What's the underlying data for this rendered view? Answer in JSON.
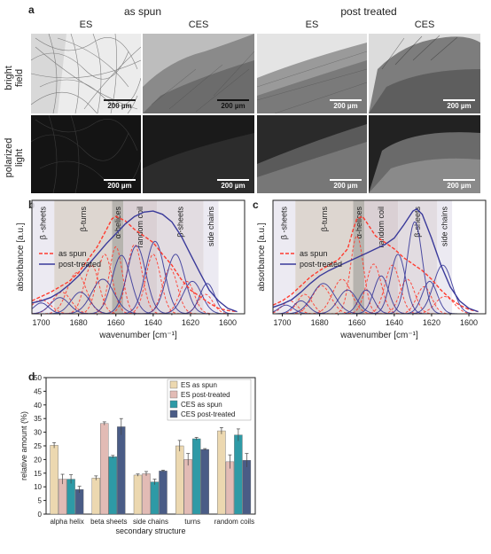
{
  "figure": {
    "panel_a": {
      "label": "a",
      "group_headers": [
        "as spun",
        "post treated"
      ],
      "column_headers": [
        "ES",
        "CES",
        "ES",
        "CES"
      ],
      "row_labels": [
        "bright field",
        "polarized light"
      ],
      "row_label_lines": [
        [
          "bright",
          "field"
        ],
        [
          "polarized",
          "light"
        ]
      ],
      "scale_bar": "200 µm"
    },
    "panel_b": {
      "label": "b",
      "ylabel": "absorbance [a.u.]",
      "xlabel": "wavenumber [cm⁻¹]",
      "xticks": [
        "1700",
        "1680",
        "1660",
        "1640",
        "1620",
        "1600"
      ],
      "regions": [
        "β -sheets",
        "β-turns",
        "α-helices",
        "random coil",
        "β-sheets",
        "side chains"
      ],
      "legend": [
        "as spun",
        "post-treated"
      ]
    },
    "panel_c": {
      "label": "c",
      "ylabel": "absorbance [a.u.]",
      "xlabel": "wavenumber [cm⁻¹]",
      "xticks": [
        "1700",
        "1680",
        "1660",
        "1640",
        "1620",
        "1600"
      ],
      "regions": [
        "β -sheets",
        "β-turns",
        "α-helices",
        "random coil",
        "β-sheets",
        "side chains"
      ],
      "legend": [
        "as spun",
        "post-treated"
      ]
    },
    "panel_d": {
      "label": "d"
    }
  },
  "colors": {
    "as_spun": "#ff3b2f",
    "post_treated": "#3a3a9a",
    "es_as_spun": "#ecd8b0",
    "es_post": "#e2bbb5",
    "ces_as_spun": "#2e9aa6",
    "ces_post": "#4a5c86"
  },
  "chart_data": [
    {
      "type": "line",
      "xlabel": "wavenumber [cm⁻¹]",
      "ylabel": "absorbance [a.u.]",
      "xlim": [
        1705,
        1591
      ],
      "reversed_x": true,
      "regions": [
        {
          "name": "β -sheets",
          "from": 1705,
          "to": 1693
        },
        {
          "name": "β-turns",
          "from": 1693,
          "to": 1662
        },
        {
          "name": "α-helices",
          "from": 1662,
          "to": 1656
        },
        {
          "name": "random coil",
          "from": 1656,
          "to": 1638
        },
        {
          "name": "β-sheets",
          "from": 1638,
          "to": 1613
        },
        {
          "name": "side chains",
          "from": 1613,
          "to": 1605
        }
      ],
      "series": [
        {
          "name": "as spun",
          "style": "dashed",
          "sum": {
            "x": [
              1705,
              1700,
              1695,
              1690,
              1685,
              1680,
              1675,
              1670,
              1665,
              1662,
              1660,
              1655,
              1650,
              1645,
              1640,
              1635,
              1630,
              1625,
              1620,
              1615,
              1610,
              1605,
              1600,
              1595
            ],
            "y": [
              0.12,
              0.16,
              0.2,
              0.25,
              0.3,
              0.38,
              0.5,
              0.62,
              0.78,
              0.88,
              0.9,
              0.86,
              0.78,
              0.72,
              0.66,
              0.55,
              0.45,
              0.32,
              0.22,
              0.16,
              0.1,
              0.05,
              0.03,
              0.02
            ]
          },
          "bands": [
            {
              "center": 1700,
              "height": 0.13,
              "width": 5
            },
            {
              "center": 1689,
              "height": 0.2,
              "width": 5
            },
            {
              "center": 1681,
              "height": 0.38,
              "width": 5
            },
            {
              "center": 1673,
              "height": 0.45,
              "width": 4
            },
            {
              "center": 1666,
              "height": 0.55,
              "width": 4
            },
            {
              "center": 1660,
              "height": 0.62,
              "width": 3.5
            },
            {
              "center": 1650,
              "height": 0.64,
              "width": 4
            },
            {
              "center": 1640,
              "height": 0.55,
              "width": 4
            },
            {
              "center": 1631,
              "height": 0.42,
              "width": 4
            },
            {
              "center": 1622,
              "height": 0.3,
              "width": 4
            },
            {
              "center": 1612,
              "height": 0.18,
              "width": 4
            }
          ]
        },
        {
          "name": "post-treated",
          "style": "solid",
          "sum": {
            "x": [
              1705,
              1700,
              1695,
              1690,
              1685,
              1680,
              1675,
              1670,
              1665,
              1660,
              1655,
              1650,
              1645,
              1640,
              1635,
              1630,
              1625,
              1620,
              1615,
              1610,
              1605,
              1600,
              1595
            ],
            "y": [
              0.1,
              0.12,
              0.15,
              0.2,
              0.27,
              0.35,
              0.45,
              0.55,
              0.65,
              0.74,
              0.83,
              0.9,
              0.94,
              0.95,
              0.92,
              0.85,
              0.72,
              0.55,
              0.38,
              0.22,
              0.12,
              0.05,
              0.02
            ]
          },
          "bands": [
            {
              "center": 1700,
              "height": 0.1,
              "width": 4
            },
            {
              "center": 1690,
              "height": 0.15,
              "width": 5
            },
            {
              "center": 1679,
              "height": 0.2,
              "width": 5
            },
            {
              "center": 1667,
              "height": 0.32,
              "width": 6
            },
            {
              "center": 1657,
              "height": 0.54,
              "width": 5
            },
            {
              "center": 1649,
              "height": 0.63,
              "width": 5
            },
            {
              "center": 1639,
              "height": 0.67,
              "width": 5
            },
            {
              "center": 1628,
              "height": 0.55,
              "width": 5
            },
            {
              "center": 1619,
              "height": 0.3,
              "width": 5
            },
            {
              "center": 1611,
              "height": 0.28,
              "width": 4
            }
          ]
        }
      ]
    },
    {
      "type": "line",
      "xlabel": "wavenumber [cm⁻¹]",
      "ylabel": "absorbance [a.u.]",
      "xlim": [
        1705,
        1591
      ],
      "reversed_x": true,
      "regions": [
        {
          "name": "β -sheets",
          "from": 1705,
          "to": 1693
        },
        {
          "name": "β-turns",
          "from": 1693,
          "to": 1662
        },
        {
          "name": "α-helices",
          "from": 1662,
          "to": 1656
        },
        {
          "name": "random coil",
          "from": 1656,
          "to": 1638
        },
        {
          "name": "β-sheets",
          "from": 1638,
          "to": 1617
        },
        {
          "name": "side chains",
          "from": 1617,
          "to": 1609
        }
      ],
      "series": [
        {
          "name": "as spun",
          "style": "dashed",
          "sum": {
            "x": [
              1705,
              1700,
              1695,
              1690,
              1685,
              1680,
              1675,
              1670,
              1665,
              1662,
              1660,
              1657,
              1655,
              1650,
              1645,
              1640,
              1635,
              1630,
              1625,
              1620,
              1615,
              1610,
              1605,
              1600,
              1595
            ],
            "y": [
              0.08,
              0.12,
              0.18,
              0.26,
              0.34,
              0.4,
              0.45,
              0.5,
              0.6,
              0.78,
              0.88,
              0.9,
              0.85,
              0.72,
              0.66,
              0.6,
              0.52,
              0.46,
              0.4,
              0.32,
              0.22,
              0.14,
              0.08,
              0.04,
              0.02
            ]
          },
          "bands": [
            {
              "center": 1696,
              "height": 0.12,
              "width": 4
            },
            {
              "center": 1688,
              "height": 0.18,
              "width": 4
            },
            {
              "center": 1679,
              "height": 0.26,
              "width": 5
            },
            {
              "center": 1668,
              "height": 0.32,
              "width": 5
            },
            {
              "center": 1660,
              "height": 0.72,
              "width": 3.5
            },
            {
              "center": 1651,
              "height": 0.46,
              "width": 4
            },
            {
              "center": 1641,
              "height": 0.45,
              "width": 4
            },
            {
              "center": 1633,
              "height": 0.32,
              "width": 4
            },
            {
              "center": 1624,
              "height": 0.25,
              "width": 4
            },
            {
              "center": 1613,
              "height": 0.16,
              "width": 5
            }
          ]
        },
        {
          "name": "post-treated",
          "style": "solid",
          "sum": {
            "x": [
              1705,
              1700,
              1695,
              1690,
              1685,
              1680,
              1675,
              1670,
              1665,
              1660,
              1655,
              1650,
              1645,
              1640,
              1635,
              1630,
              1628,
              1625,
              1620,
              1615,
              1610,
              1605,
              1600,
              1595
            ],
            "y": [
              0.06,
              0.09,
              0.13,
              0.2,
              0.28,
              0.35,
              0.4,
              0.44,
              0.48,
              0.52,
              0.56,
              0.6,
              0.64,
              0.7,
              0.82,
              0.95,
              0.97,
              0.92,
              0.7,
              0.45,
              0.25,
              0.12,
              0.05,
              0.02
            ]
          },
          "bands": [
            {
              "center": 1698,
              "height": 0.08,
              "width": 4
            },
            {
              "center": 1690,
              "height": 0.12,
              "width": 4
            },
            {
              "center": 1678,
              "height": 0.28,
              "width": 6
            },
            {
              "center": 1665,
              "height": 0.22,
              "width": 5
            },
            {
              "center": 1655,
              "height": 0.22,
              "width": 4
            },
            {
              "center": 1647,
              "height": 0.35,
              "width": 4
            },
            {
              "center": 1638,
              "height": 0.55,
              "width": 4
            },
            {
              "center": 1629,
              "height": 0.85,
              "width": 4
            },
            {
              "center": 1621,
              "height": 0.3,
              "width": 4
            },
            {
              "center": 1614,
              "height": 0.45,
              "width": 5
            }
          ]
        }
      ]
    },
    {
      "type": "bar",
      "xlabel": "secondary structure",
      "ylabel": "relative amount (%)",
      "ylim": [
        0,
        50
      ],
      "yticks": [
        0,
        5,
        10,
        15,
        20,
        25,
        30,
        35,
        40,
        45,
        50
      ],
      "categories": [
        "alpha helix",
        "beta sheets",
        "side chains",
        "turns",
        "random coils"
      ],
      "series": [
        {
          "name": "ES as spun",
          "values": [
            25.2,
            13.2,
            14.3,
            25.0,
            30.5
          ],
          "errors": [
            1.0,
            0.8,
            0.4,
            2.0,
            1.2
          ]
        },
        {
          "name": "ES post-treated",
          "values": [
            12.8,
            33.2,
            14.8,
            20.0,
            19.2
          ],
          "errors": [
            1.8,
            0.6,
            0.8,
            2.2,
            2.5
          ]
        },
        {
          "name": "CES as spun",
          "values": [
            12.8,
            21.0,
            11.8,
            27.6,
            29.0
          ],
          "errors": [
            1.6,
            0.5,
            1.0,
            0.5,
            2.2
          ]
        },
        {
          "name": "CES post-treated",
          "values": [
            9.0,
            32.0,
            15.8,
            23.7,
            19.7
          ],
          "errors": [
            1.2,
            3.0,
            0.3,
            0.3,
            2.5
          ]
        }
      ],
      "legend_position": "top-right"
    }
  ]
}
